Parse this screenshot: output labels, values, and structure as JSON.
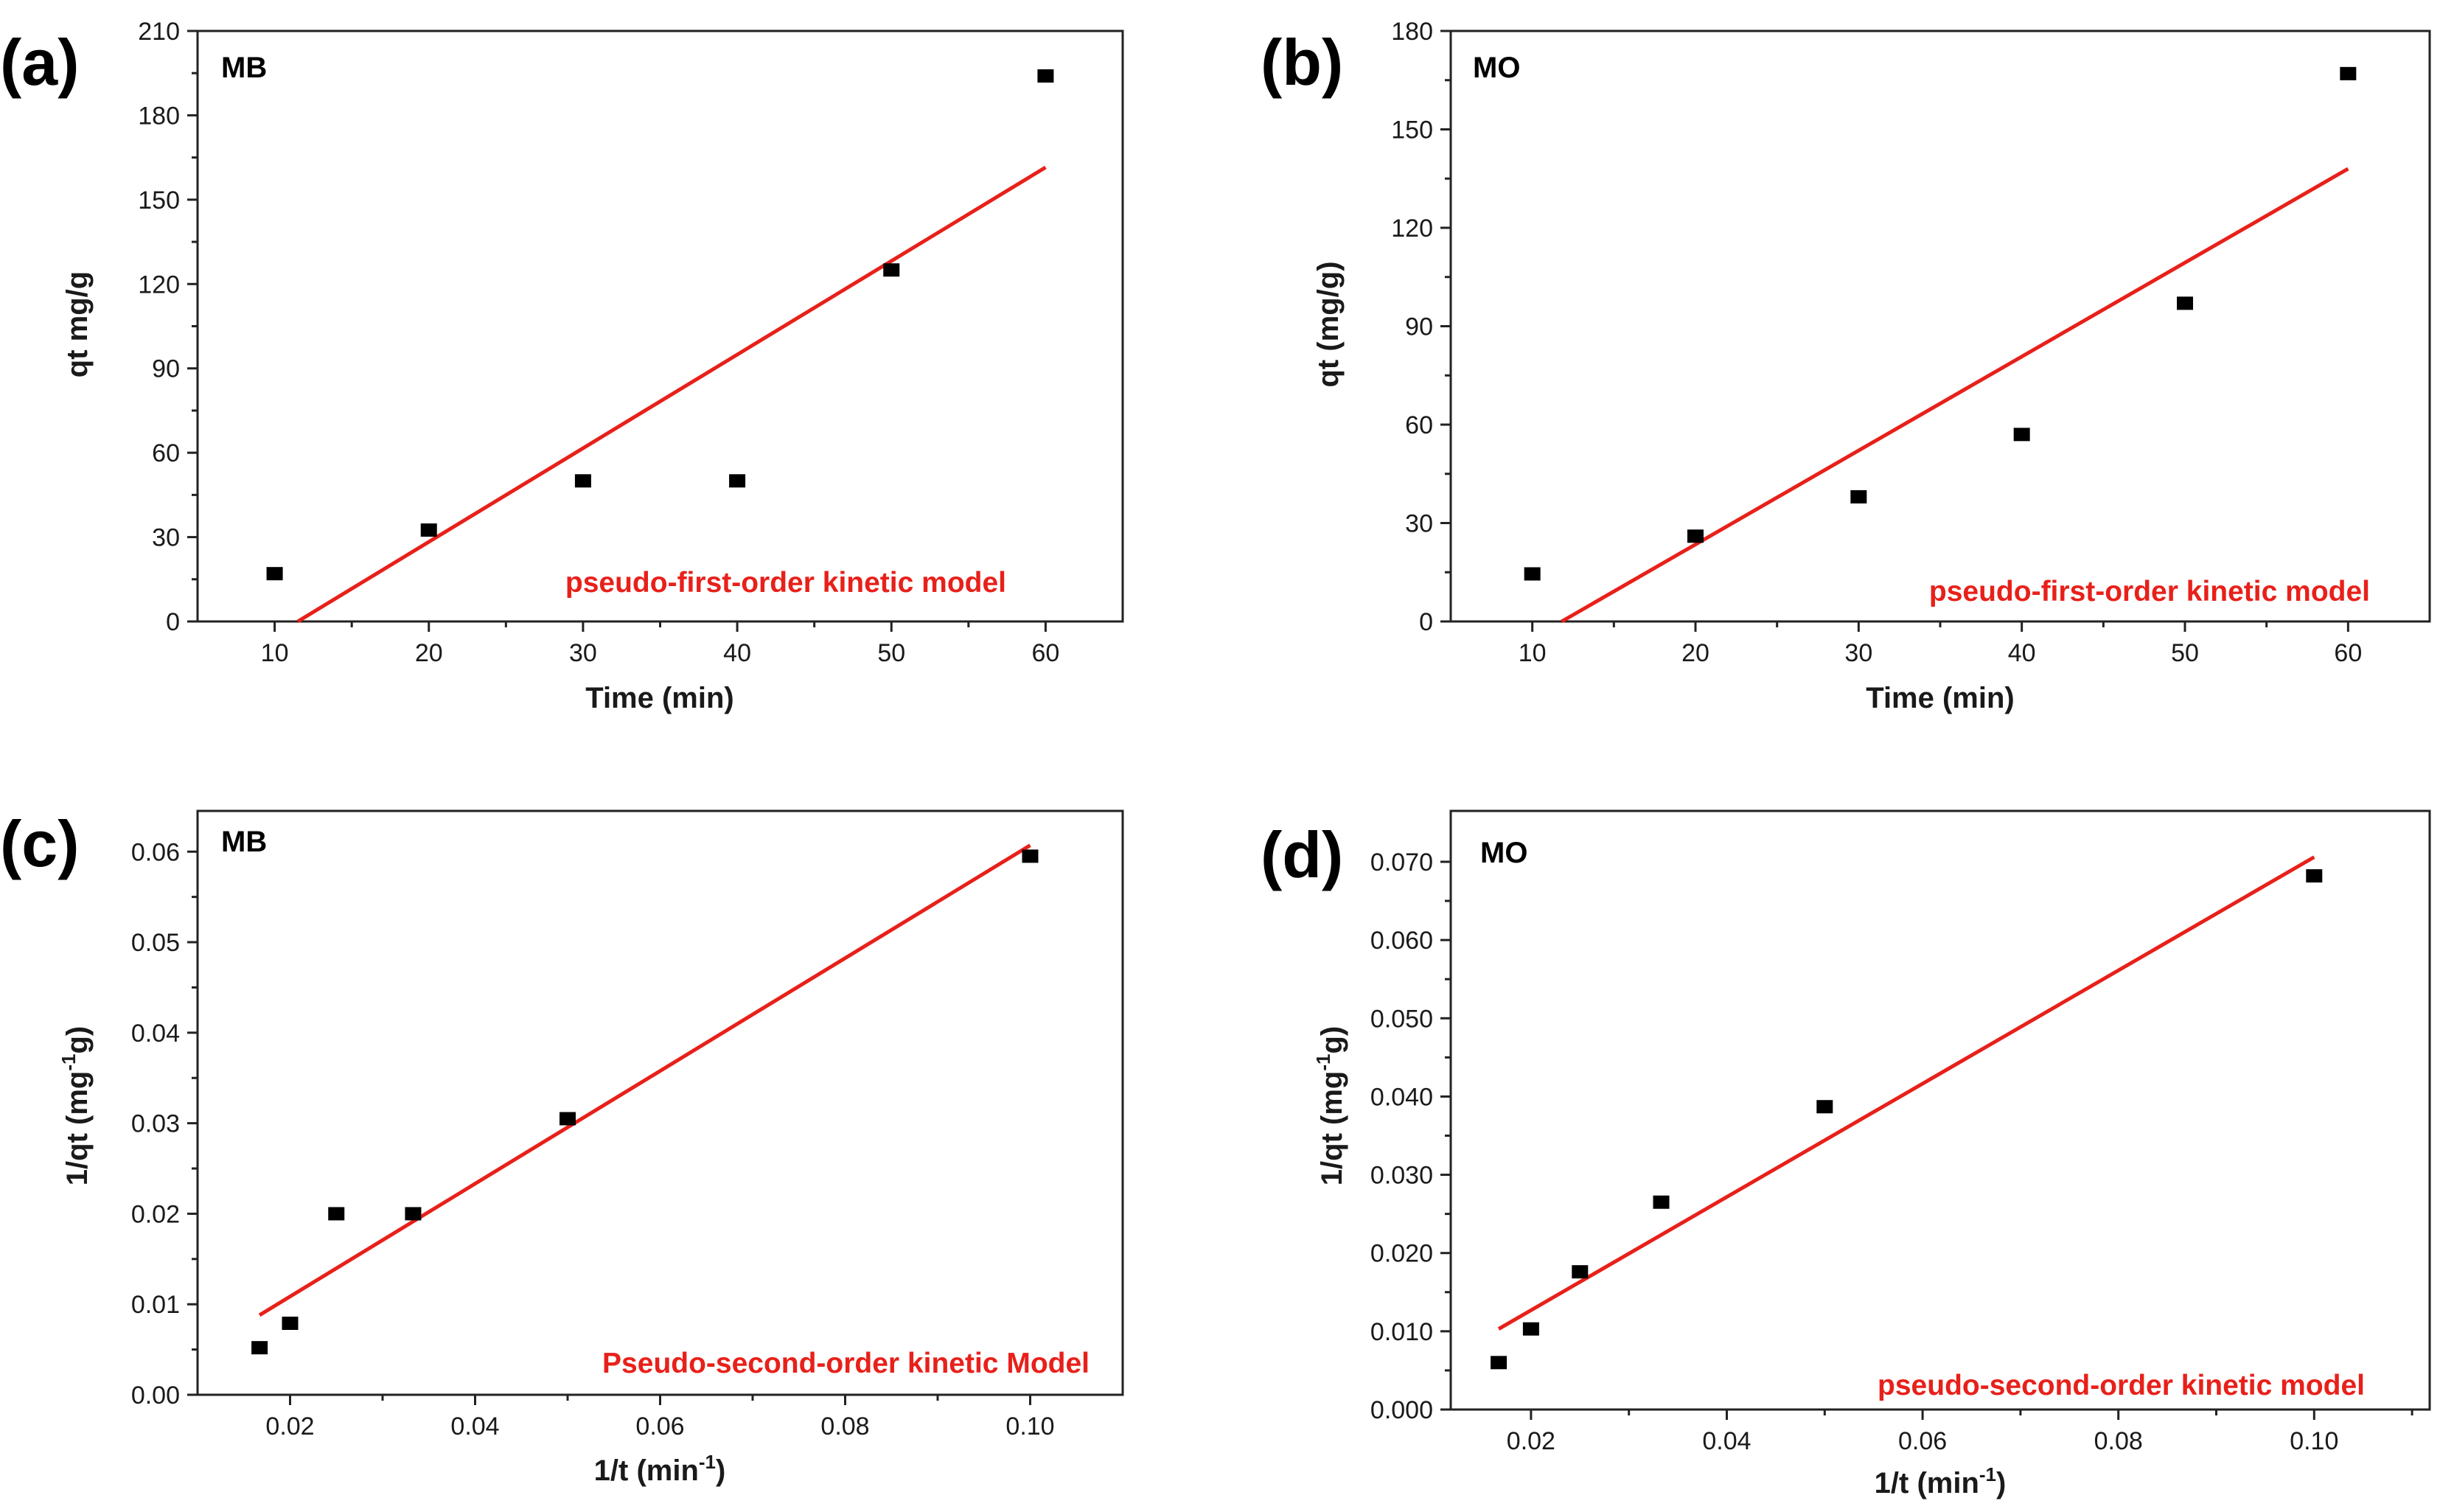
{
  "figure": {
    "line_color": "#e8201a",
    "marker_color": "#000000",
    "axis_color": "#222222"
  },
  "chart_data": [
    {
      "panel": "(a)",
      "dataset": "MB",
      "type": "scatter",
      "xlabel": "Time (min)",
      "ylabel": "qt mg/g",
      "xlim": [
        5,
        65
      ],
      "ylim": [
        0,
        210
      ],
      "xticks": [
        "10",
        "20",
        "30",
        "40",
        "50",
        "60"
      ],
      "yticks": [
        "0",
        "30",
        "60",
        "90",
        "120",
        "150",
        "180",
        "210"
      ],
      "x": [
        10,
        20,
        30,
        40,
        50,
        60
      ],
      "y": [
        17,
        32.5,
        50,
        50,
        125,
        194
      ],
      "fit": {
        "label": "pseudo-first-order kinetic model",
        "x": [
          11.5,
          60
        ],
        "y": [
          0,
          161.5
        ]
      }
    },
    {
      "panel": "(b)",
      "dataset": "MO",
      "type": "scatter",
      "xlabel": "Time (min)",
      "ylabel": "qt (mg/g)",
      "xlim": [
        5,
        65
      ],
      "ylim": [
        0,
        180
      ],
      "xticks": [
        "10",
        "20",
        "30",
        "40",
        "50",
        "60"
      ],
      "yticks": [
        "0",
        "30",
        "60",
        "90",
        "120",
        "150",
        "180"
      ],
      "x": [
        10,
        20,
        30,
        40,
        50,
        60
      ],
      "y": [
        14.5,
        26,
        38,
        57,
        97,
        167
      ],
      "fit": {
        "label": "pseudo-first-order kinetic model",
        "x": [
          11.8,
          60
        ],
        "y": [
          0,
          138
        ]
      }
    },
    {
      "panel": "(c)",
      "dataset": "MB",
      "type": "scatter",
      "xlabel_main": "1/t (min",
      "xlabel_sup": "-1",
      "xlabel_end": ")",
      "ylabel_main": "1/qt (mg",
      "ylabel_sup": "-1",
      "ylabel_end": "g)",
      "xlim": [
        0.01,
        0.11
      ],
      "ylim": [
        0,
        0.0645
      ],
      "xticks": [
        "0.02",
        "0.04",
        "0.06",
        "0.08",
        "0.10"
      ],
      "yticks": [
        "0.00",
        "0.01",
        "0.02",
        "0.03",
        "0.04",
        "0.05",
        "0.06"
      ],
      "x": [
        0.0167,
        0.02,
        0.025,
        0.0333,
        0.05,
        0.1
      ],
      "y": [
        0.0052,
        0.0079,
        0.02,
        0.02,
        0.0305,
        0.0595
      ],
      "fit": {
        "label": "Pseudo-second-order kinetic Model",
        "x": [
          0.0167,
          0.1
        ],
        "y": [
          0.0088,
          0.0607
        ]
      }
    },
    {
      "panel": "(d)",
      "dataset": "MO",
      "type": "scatter",
      "xlabel_main": "1/t (min",
      "xlabel_sup": "-1",
      "xlabel_end": ")",
      "ylabel_main": "1/qt (mg",
      "ylabel_sup": "-1",
      "ylabel_end": "g)",
      "xlim": [
        0.0118,
        0.1118
      ],
      "ylim": [
        0,
        0.0765
      ],
      "xticks": [
        "0.02",
        "0.04",
        "0.06",
        "0.08",
        "0.10"
      ],
      "yticks": [
        "0.000",
        "0.010",
        "0.020",
        "0.030",
        "0.040",
        "0.050",
        "0.060",
        "0.070"
      ],
      "x": [
        0.0167,
        0.02,
        0.025,
        0.0333,
        0.05,
        0.1
      ],
      "y": [
        0.006,
        0.0103,
        0.0176,
        0.0265,
        0.0387,
        0.0682
      ],
      "fit": {
        "label": "pseudo-second-order kinetic model",
        "x": [
          0.0167,
          0.1
        ],
        "y": [
          0.0103,
          0.0706
        ]
      }
    }
  ]
}
